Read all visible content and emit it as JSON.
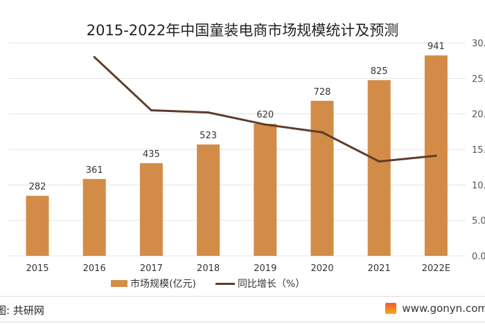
{
  "chart_data": {
    "type": "bar+line",
    "title": "2015-2022年中国童装电商市场规模统计及预测",
    "categories": [
      "2015",
      "2016",
      "2017",
      "2018",
      "2019",
      "2020",
      "2021",
      "2022E"
    ],
    "series": [
      {
        "name": "市场规模(亿元)",
        "type": "bar",
        "axis": "left",
        "values": [
          282,
          361,
          435,
          523,
          620,
          728,
          825,
          941
        ],
        "color": "#d38c47"
      },
      {
        "name": "同比增长（%）",
        "type": "line",
        "axis": "right",
        "values": [
          null,
          28.0,
          20.5,
          20.2,
          18.5,
          17.4,
          13.3,
          14.1
        ],
        "color": "#5c3d2b"
      }
    ],
    "left_ylim": [
      0,
      1000
    ],
    "right_ylim": [
      0,
      30
    ],
    "right_ticks": [
      "0.0",
      "5.0",
      "10.0",
      "15.0",
      "20.0",
      "25.0",
      "30.0"
    ],
    "grid": true,
    "legend": "bottom"
  },
  "footer": {
    "source": "图: 共研网",
    "site": "www.gonyn.com"
  }
}
